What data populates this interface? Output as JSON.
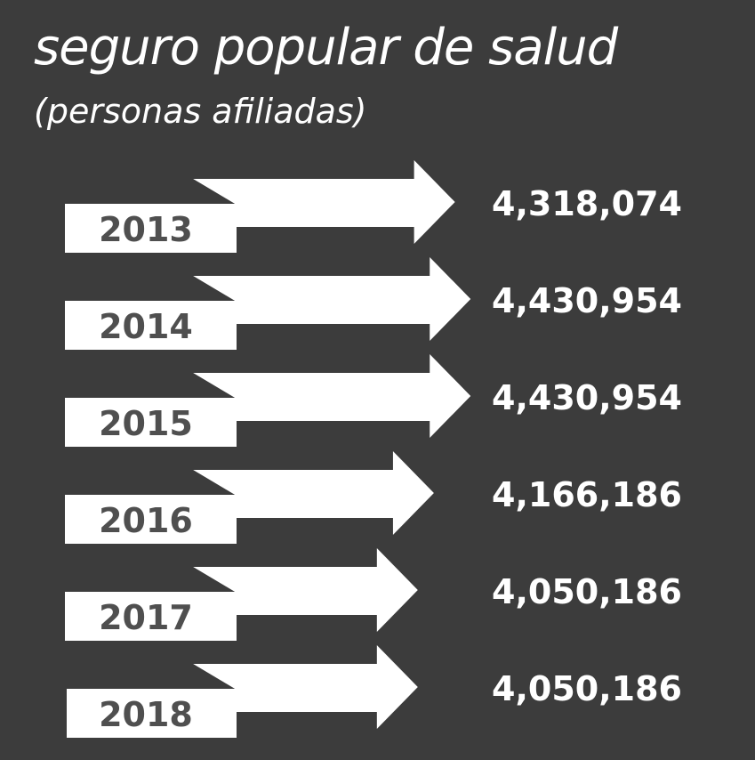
{
  "chart_data": {
    "type": "bar",
    "title": "seguro popular de salud",
    "subtitle": "(personas afiliadas)",
    "categories": [
      "2013",
      "2014",
      "2015",
      "2016",
      "2017",
      "2018"
    ],
    "values": [
      4318074,
      4430954,
      4430954,
      4166186,
      4050186,
      4050186
    ],
    "value_labels": [
      "4,318,074",
      "4,430,954",
      "4,430,954",
      "4,166,186",
      "4,050,186",
      "4,050,186"
    ],
    "colors": {
      "background": "#3c3c3c",
      "arrow": "#ffffff",
      "year_text": "#4f4f4f",
      "fold": "#3c3c3c",
      "value_text": "#ffffff"
    }
  }
}
